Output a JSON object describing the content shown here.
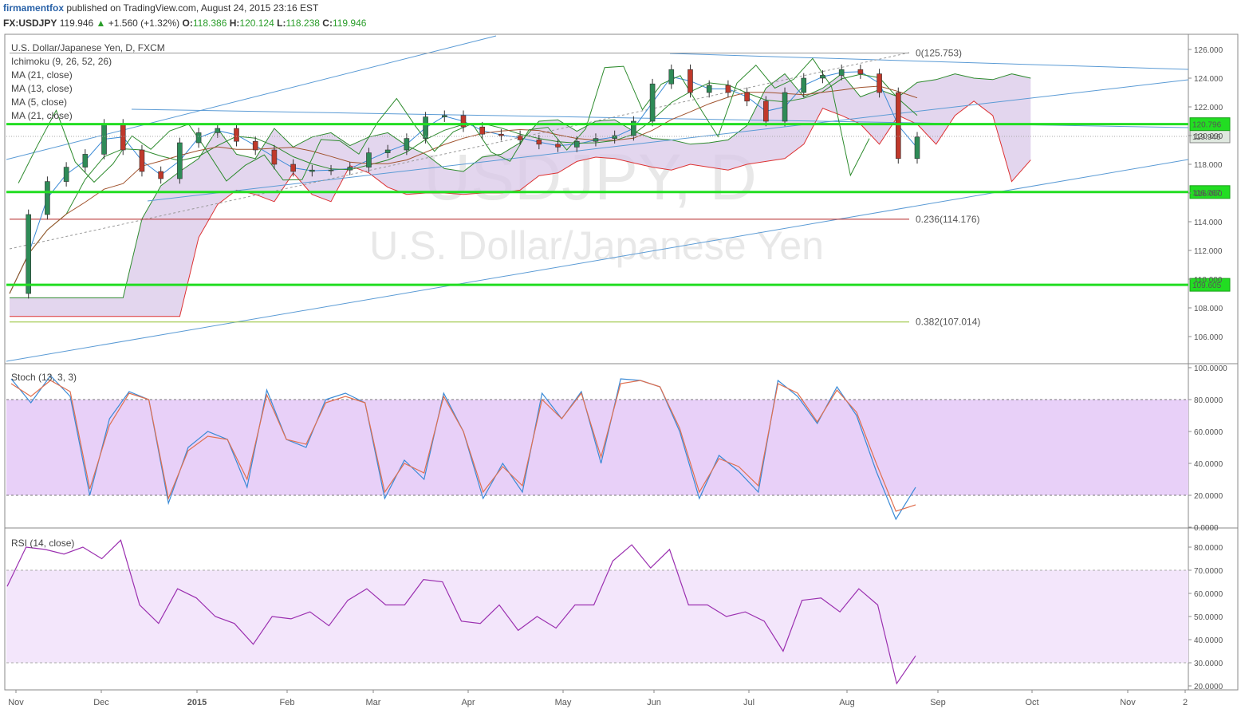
{
  "header": {
    "author": "firmamentfox",
    "published": "published on TradingView.com, August 24, 2015 23:16 EST",
    "symbol": "FX:USDJPY",
    "last": "119.946",
    "change": "+1.560 (+1.32%)",
    "o_label": "O:",
    "o": "118.386",
    "h_label": "H:",
    "h": "120.124",
    "l_label": "L:",
    "l": "118.238",
    "c_label": "C:",
    "c": "119.946"
  },
  "main_pane": {
    "title": "U.S. Dollar/Japanese Yen, D, FXCM",
    "indicators": [
      "Ichimoku (9, 26, 52, 26)",
      "MA (21, close)",
      "MA (13, close)",
      "MA (5, close)",
      "MA (21, close)"
    ],
    "watermark_symbol": "USDJPY, D",
    "watermark_name": "U.S. Dollar/Japanese Yen",
    "fib_levels": [
      {
        "label": "0(125.753)",
        "value": 125.753,
        "color": "#999999"
      },
      {
        "label": "0.236(114.176)",
        "value": 114.176,
        "color": "#b22222"
      },
      {
        "label": "0.382(107.014)",
        "value": 107.014,
        "color": "#8fbf2f"
      }
    ],
    "horizontal_levels": [
      {
        "label": "120.796",
        "value": 120.796
      },
      {
        "label": "116.067",
        "value": 116.067
      },
      {
        "label": "109.605",
        "value": 109.605
      }
    ],
    "last_price_label": "119.946",
    "level_color": "#22dd22"
  },
  "stoch_pane": {
    "title": "Stoch (13, 3, 3)"
  },
  "rsi_pane": {
    "title": "RSI (14, close)"
  },
  "colors": {
    "up": "#2e8b57",
    "down": "#c0392b",
    "cloud": "#d9c8e8",
    "stoch_band": "#e8d0f8",
    "rsi_band": "#f3e6fb",
    "blue_line": "#5b9bd5"
  },
  "chart_data": [
    {
      "type": "candlestick",
      "title": "U.S. Dollar/Japanese Yen, D, FXCM",
      "x_ticks": [
        "Nov",
        "Dec",
        "2015",
        "Feb",
        "Mar",
        "Apr",
        "May",
        "Jun",
        "Jul",
        "Aug",
        "Sep",
        "Oct",
        "Nov",
        "2"
      ],
      "y_ticks": [
        "106.000",
        "108.000",
        "110.000",
        "112.000",
        "114.000",
        "116.000",
        "118.000",
        "120.000",
        "122.000",
        "124.000",
        "126.000"
      ],
      "ylim": [
        104.0,
        127.0
      ],
      "close_path": [
        [
          "Nov",
          109.0
        ],
        [
          "Nov",
          114.5
        ],
        [
          "Nov",
          116.8
        ],
        [
          "Nov",
          117.8
        ],
        [
          "Dec",
          118.7
        ],
        [
          "Dec",
          120.8
        ],
        [
          "Dec",
          119.0
        ],
        [
          "Dec",
          117.5
        ],
        [
          "Dec",
          117.0
        ],
        [
          "Dec",
          119.5
        ],
        [
          "Dec",
          120.2
        ],
        [
          "2015",
          120.5
        ],
        [
          "2015",
          119.6
        ],
        [
          "2015",
          119.0
        ],
        [
          "2015",
          118.0
        ],
        [
          "2015",
          117.5
        ],
        [
          "2015",
          117.6
        ],
        [
          "Feb",
          117.6
        ],
        [
          "Feb",
          117.8
        ],
        [
          "Feb",
          118.8
        ],
        [
          "Feb",
          119.0
        ],
        [
          "Mar",
          119.8
        ],
        [
          "Mar",
          121.3
        ],
        [
          "Mar",
          121.4
        ],
        [
          "Mar",
          120.6
        ],
        [
          "Mar",
          120.1
        ],
        [
          "Apr",
          120.0
        ],
        [
          "Apr",
          119.7
        ],
        [
          "Apr",
          119.4
        ],
        [
          "Apr",
          119.2
        ],
        [
          "May",
          119.6
        ],
        [
          "May",
          119.8
        ],
        [
          "May",
          120.0
        ],
        [
          "May",
          121.0
        ],
        [
          "Jun",
          123.6
        ],
        [
          "Jun",
          124.6
        ],
        [
          "Jun",
          123.0
        ],
        [
          "Jun",
          123.5
        ],
        [
          "Jun",
          123.0
        ],
        [
          "Jul",
          122.4
        ],
        [
          "Jul",
          121.0
        ],
        [
          "Jul",
          123.0
        ],
        [
          "Jul",
          124.0
        ],
        [
          "Aug",
          124.2
        ],
        [
          "Aug",
          124.6
        ],
        [
          "Aug",
          124.3
        ],
        [
          "Aug",
          123.0
        ],
        [
          "Aug",
          118.4
        ],
        [
          "Aug",
          119.9
        ]
      ],
      "levels": [
        120.796,
        116.067,
        109.605
      ],
      "fibonacci": {
        "0": 125.753,
        "0.236": 114.176,
        "0.382": 107.014
      }
    },
    {
      "type": "line",
      "title": "Stoch (13, 3, 3)",
      "x_ticks": [
        "Nov",
        "Dec",
        "2015",
        "Feb",
        "Mar",
        "Apr",
        "May",
        "Jun",
        "Jul",
        "Aug",
        "Sep",
        "Oct",
        "Nov",
        "2"
      ],
      "y_ticks": [
        "0.0000",
        "20.0000",
        "40.0000",
        "60.0000",
        "80.0000",
        "100.0000"
      ],
      "ylim": [
        0,
        100
      ],
      "bands": [
        20,
        80
      ],
      "series": [
        {
          "color": "#3a8ad6",
          "values": [
            93,
            78,
            95,
            82,
            20,
            68,
            85,
            80,
            15,
            50,
            60,
            55,
            25,
            86,
            55,
            50,
            80,
            84,
            78,
            18,
            42,
            30,
            84,
            60,
            18,
            40,
            22,
            84,
            68,
            85,
            40,
            93,
            92,
            88,
            60,
            18,
            45,
            35,
            22,
            92,
            82,
            65,
            88,
            70,
            35,
            5,
            25
          ]
        },
        {
          "color": "#e07050",
          "values": [
            90,
            82,
            92,
            85,
            24,
            64,
            84,
            80,
            18,
            48,
            57,
            55,
            30,
            83,
            55,
            52,
            78,
            82,
            78,
            22,
            40,
            34,
            82,
            60,
            22,
            38,
            26,
            80,
            68,
            84,
            44,
            90,
            92,
            88,
            62,
            22,
            43,
            38,
            26,
            90,
            84,
            66,
            86,
            72,
            40,
            10,
            14
          ]
        }
      ]
    },
    {
      "type": "line",
      "title": "RSI (14, close)",
      "x_ticks": [
        "Nov",
        "Dec",
        "2015",
        "Feb",
        "Mar",
        "Apr",
        "May",
        "Jun",
        "Jul",
        "Aug",
        "Sep",
        "Oct",
        "Nov",
        "2"
      ],
      "y_ticks": [
        "20.0000",
        "30.0000",
        "40.0000",
        "50.0000",
        "60.0000",
        "70.0000",
        "80.0000"
      ],
      "ylim": [
        17,
        85
      ],
      "bands": [
        30,
        70
      ],
      "series": [
        {
          "color": "#9b30b0",
          "values": [
            63,
            80,
            79,
            77,
            80,
            75,
            83,
            55,
            47,
            62,
            58,
            50,
            47,
            38,
            50,
            49,
            52,
            46,
            57,
            62,
            55,
            55,
            66,
            65,
            48,
            47,
            55,
            44,
            50,
            45,
            55,
            55,
            74,
            81,
            71,
            79,
            55,
            55,
            50,
            52,
            48,
            35,
            57,
            58,
            52,
            62,
            55,
            21,
            33
          ]
        }
      ]
    }
  ]
}
